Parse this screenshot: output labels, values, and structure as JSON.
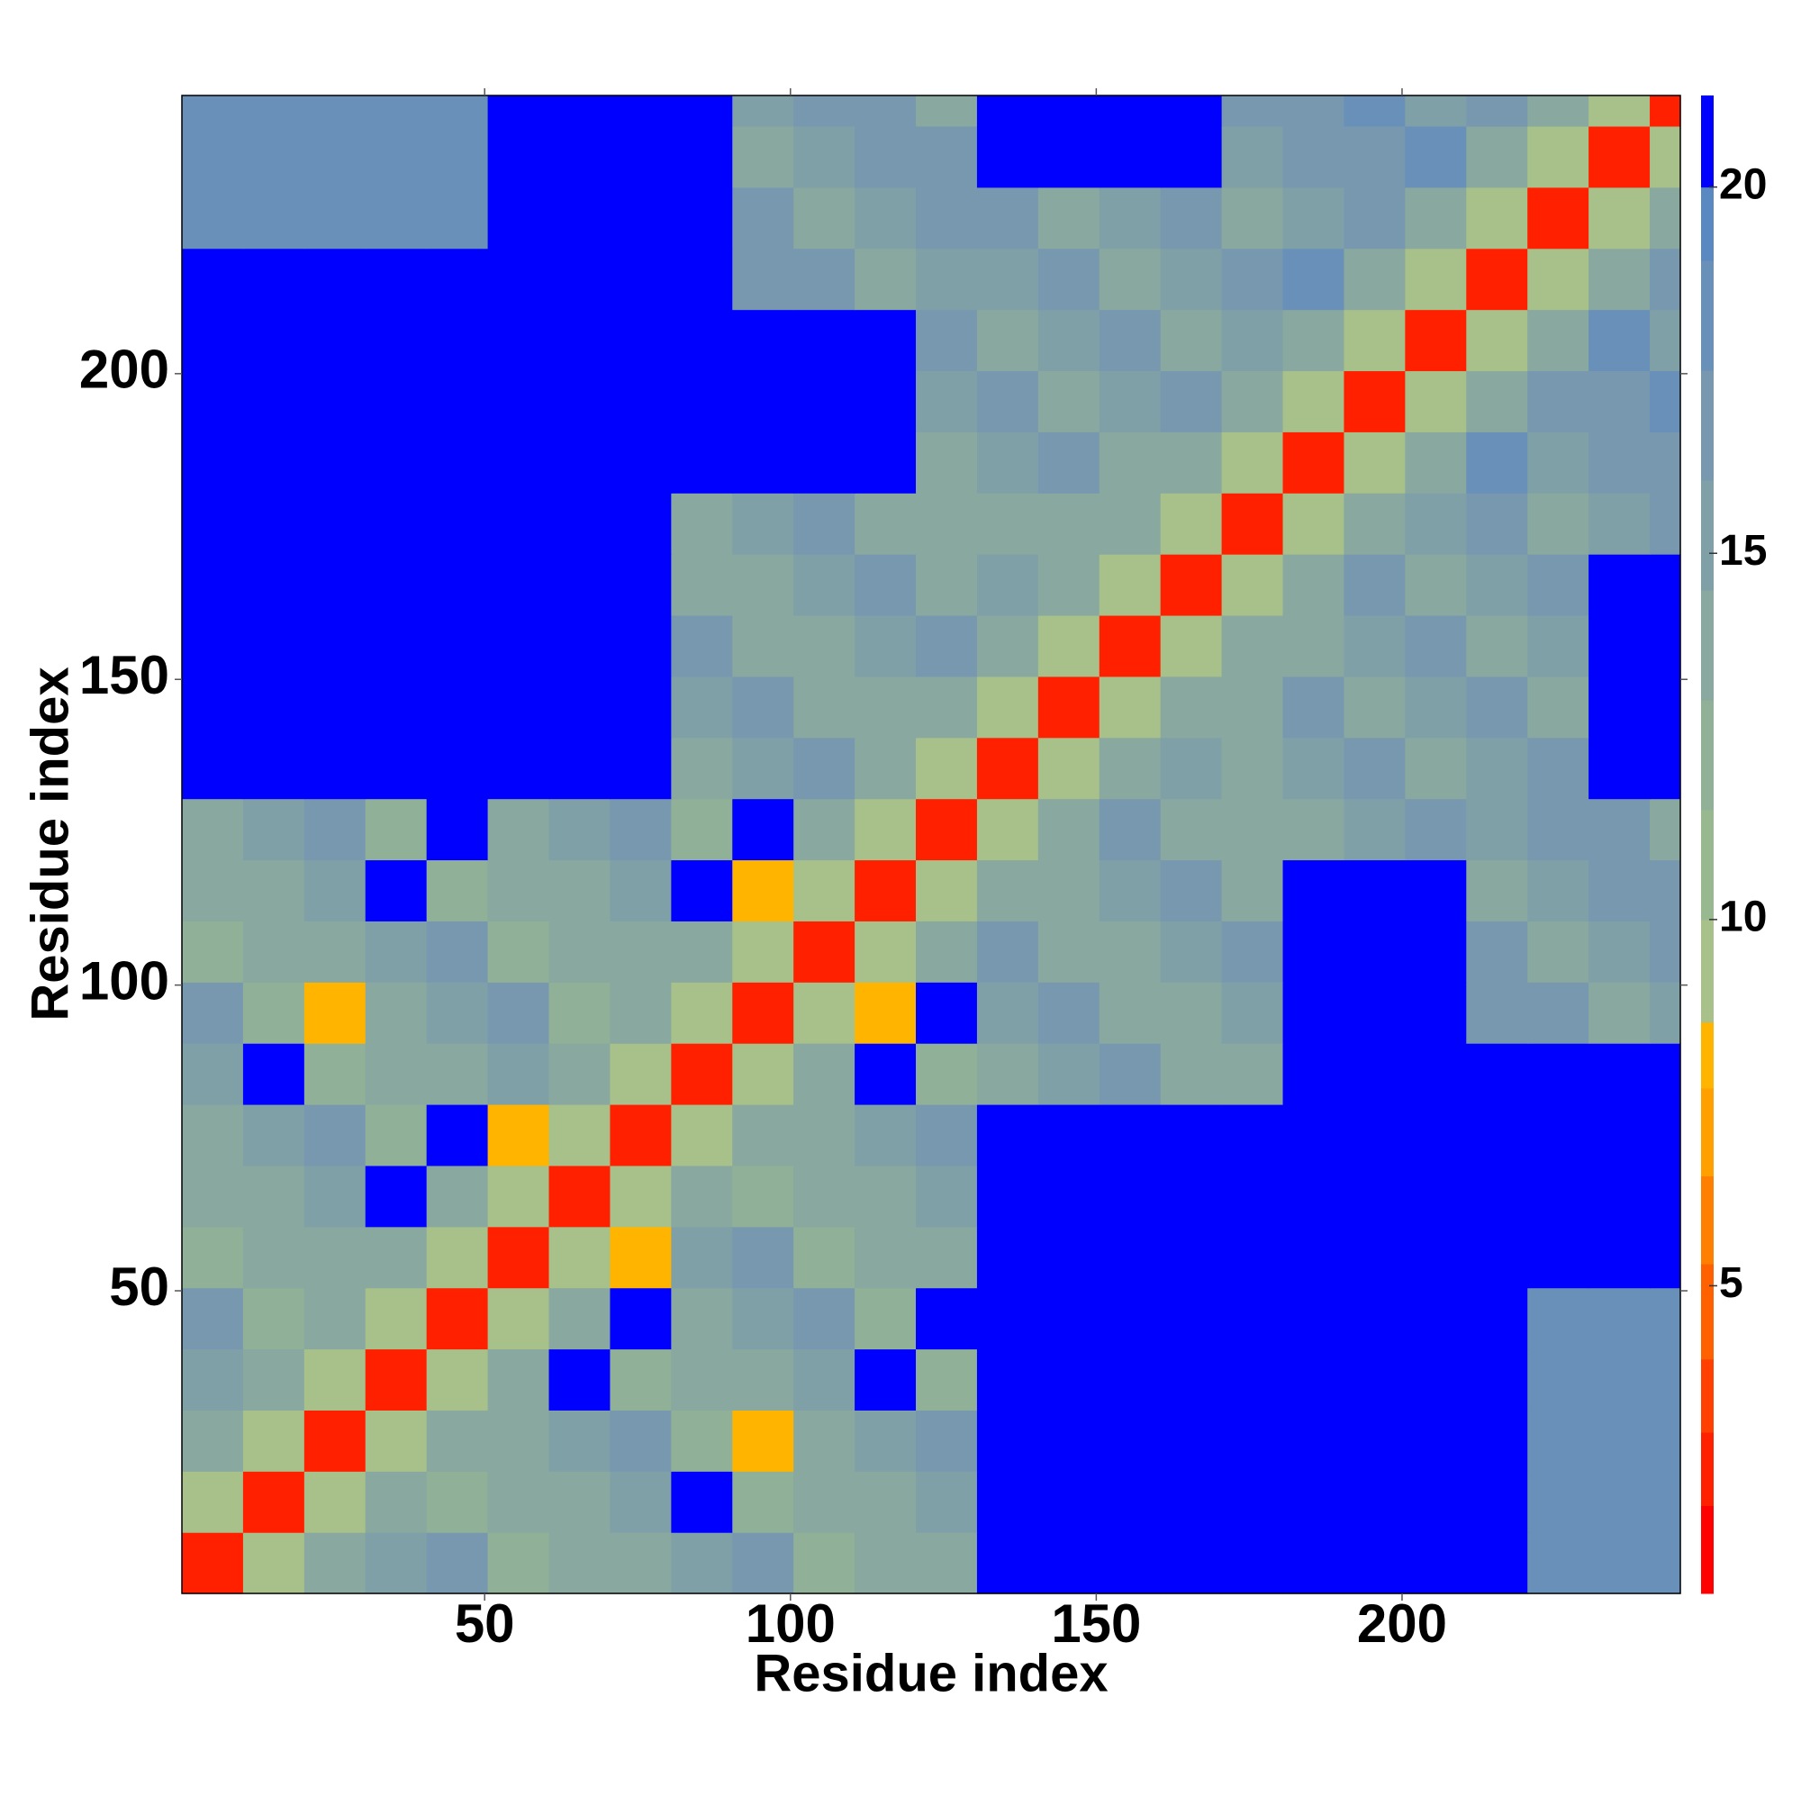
{
  "chart_data": {
    "type": "heatmap",
    "xlabel": "Residue index",
    "ylabel": "Residue index",
    "xlim": [
      0.5,
      245.5
    ],
    "ylim": [
      0.5,
      245.5
    ],
    "xticks": [
      50,
      100,
      150,
      200
    ],
    "yticks": [
      50,
      100,
      150,
      200
    ],
    "xbins": [
      0.5,
      10.5,
      20.5,
      30.5,
      40.5,
      50.5,
      60.5,
      70.5,
      80.5,
      90.5,
      100.5,
      110.5,
      120.5,
      130.5,
      140.5,
      150.5,
      160.5,
      170.5,
      180.5,
      190.5,
      200.5,
      210.5,
      220.5,
      230.5,
      240.5,
      245.5
    ],
    "ybins": [
      0.5,
      10.5,
      20.5,
      30.5,
      40.5,
      50.5,
      60.5,
      70.5,
      80.5,
      90.5,
      100.5,
      110.5,
      120.5,
      130.5,
      140.5,
      150.5,
      160.5,
      170.5,
      180.5,
      190.5,
      200.5,
      210.5,
      220.5,
      230.5,
      240.5,
      245.5
    ],
    "z": [
      [
        2,
        9,
        13,
        15,
        16,
        12,
        13,
        14,
        15,
        16,
        12,
        13,
        14,
        21,
        21,
        21,
        21,
        21,
        21,
        21,
        21,
        21,
        18,
        18,
        18
      ],
      [
        9,
        2,
        9,
        13,
        12,
        13,
        14,
        15,
        21,
        12,
        13,
        14,
        15,
        21,
        21,
        21,
        21,
        21,
        21,
        21,
        21,
        21,
        18,
        18,
        18
      ],
      [
        13,
        9,
        2,
        9,
        13,
        14,
        15,
        16,
        12,
        8,
        14,
        15,
        16,
        21,
        21,
        21,
        21,
        21,
        21,
        21,
        21,
        21,
        18,
        18,
        18
      ],
      [
        15,
        13,
        9,
        2,
        9,
        13,
        21,
        12,
        13,
        14,
        15,
        21,
        12,
        21,
        21,
        21,
        21,
        21,
        21,
        21,
        21,
        21,
        18,
        18,
        18
      ],
      [
        16,
        12,
        13,
        9,
        2,
        9,
        13,
        21,
        14,
        15,
        16,
        12,
        21,
        21,
        21,
        21,
        21,
        21,
        21,
        21,
        21,
        21,
        18,
        18,
        18
      ],
      [
        12,
        13,
        14,
        13,
        9,
        2,
        9,
        8,
        15,
        16,
        12,
        13,
        14,
        21,
        21,
        21,
        21,
        21,
        21,
        21,
        21,
        21,
        21,
        21,
        21
      ],
      [
        13,
        14,
        15,
        21,
        13,
        9,
        2,
        9,
        13,
        12,
        13,
        14,
        15,
        21,
        21,
        21,
        21,
        21,
        21,
        21,
        21,
        21,
        21,
        21,
        21
      ],
      [
        14,
        15,
        16,
        12,
        21,
        8,
        9,
        2,
        9,
        13,
        14,
        15,
        16,
        21,
        21,
        21,
        21,
        21,
        21,
        21,
        21,
        21,
        21,
        21,
        21
      ],
      [
        15,
        21,
        12,
        13,
        14,
        15,
        13,
        9,
        2,
        9,
        13,
        21,
        12,
        14,
        15,
        16,
        13,
        14,
        21,
        21,
        21,
        21,
        21,
        21,
        21
      ],
      [
        16,
        12,
        8,
        14,
        15,
        16,
        12,
        13,
        9,
        2,
        9,
        8,
        21,
        15,
        16,
        13,
        14,
        15,
        21,
        21,
        21,
        16,
        17,
        14,
        15
      ],
      [
        12,
        13,
        14,
        15,
        16,
        12,
        13,
        14,
        13,
        9,
        2,
        9,
        13,
        16,
        13,
        14,
        15,
        16,
        21,
        21,
        21,
        17,
        14,
        15,
        16
      ],
      [
        13,
        14,
        15,
        21,
        12,
        13,
        14,
        15,
        21,
        8,
        9,
        2,
        9,
        13,
        14,
        15,
        16,
        13,
        21,
        21,
        21,
        14,
        15,
        16,
        17
      ],
      [
        14,
        15,
        16,
        12,
        21,
        14,
        15,
        16,
        12,
        21,
        13,
        9,
        2,
        9,
        13,
        16,
        13,
        14,
        14,
        15,
        16,
        15,
        16,
        17,
        14
      ],
      [
        21,
        21,
        21,
        21,
        21,
        21,
        21,
        21,
        14,
        15,
        16,
        13,
        9,
        2,
        9,
        13,
        15,
        13,
        15,
        16,
        14,
        15,
        16,
        21,
        21
      ],
      [
        21,
        21,
        21,
        21,
        21,
        21,
        21,
        21,
        15,
        16,
        13,
        14,
        13,
        9,
        2,
        9,
        13,
        14,
        16,
        14,
        15,
        16,
        14,
        21,
        21
      ],
      [
        21,
        21,
        21,
        21,
        21,
        21,
        21,
        21,
        16,
        13,
        14,
        15,
        16,
        13,
        9,
        2,
        9,
        13,
        14,
        15,
        16,
        14,
        15,
        21,
        21
      ],
      [
        21,
        21,
        21,
        21,
        21,
        21,
        21,
        21,
        13,
        14,
        15,
        16,
        13,
        15,
        13,
        9,
        2,
        9,
        13,
        16,
        14,
        15,
        16,
        21,
        21
      ],
      [
        21,
        21,
        21,
        21,
        21,
        21,
        21,
        21,
        14,
        15,
        16,
        13,
        14,
        13,
        14,
        13,
        9,
        2,
        9,
        13,
        15,
        16,
        14,
        15,
        16
      ],
      [
        21,
        21,
        21,
        21,
        21,
        21,
        21,
        21,
        21,
        21,
        21,
        21,
        14,
        15,
        16,
        14,
        13,
        9,
        2,
        9,
        13,
        18,
        15,
        16,
        17
      ],
      [
        21,
        21,
        21,
        21,
        21,
        21,
        21,
        21,
        21,
        21,
        21,
        21,
        15,
        16,
        14,
        15,
        16,
        13,
        9,
        2,
        9,
        13,
        16,
        17,
        18
      ],
      [
        21,
        21,
        21,
        21,
        21,
        21,
        21,
        21,
        21,
        21,
        21,
        21,
        16,
        14,
        15,
        16,
        14,
        15,
        13,
        9,
        2,
        9,
        13,
        18,
        15
      ],
      [
        21,
        21,
        21,
        21,
        21,
        21,
        21,
        21,
        21,
        16,
        17,
        14,
        15,
        15,
        16,
        14,
        15,
        16,
        18,
        13,
        9,
        2,
        9,
        13,
        16
      ],
      [
        18,
        18,
        18,
        18,
        18,
        21,
        21,
        21,
        21,
        17,
        14,
        15,
        16,
        16,
        14,
        15,
        16,
        14,
        15,
        16,
        13,
        9,
        2,
        9,
        13
      ],
      [
        18,
        18,
        18,
        18,
        18,
        21,
        21,
        21,
        21,
        14,
        15,
        16,
        17,
        21,
        21,
        21,
        21,
        15,
        16,
        17,
        18,
        13,
        9,
        2,
        9
      ],
      [
        18,
        18,
        18,
        18,
        18,
        21,
        21,
        21,
        21,
        15,
        16,
        17,
        14,
        21,
        21,
        21,
        21,
        16,
        17,
        18,
        15,
        16,
        13,
        9,
        2
      ]
    ],
    "clim": [
      0.8,
      21.25
    ],
    "cticks": [
      5,
      10,
      15,
      20
    ],
    "color_levels": [
      2,
      3,
      4,
      5.3,
      6.5,
      7.7,
      8.6,
      10,
      11.5,
      13,
      14.5,
      16,
      17.5,
      19,
      20
    ],
    "colors": [
      "#ff0000",
      "#ff2000",
      "#ff4000",
      "#ff6000",
      "#ff8000",
      "#ffa000",
      "#ffb400",
      "#a8c08a",
      "#98b890",
      "#90b098",
      "#88a8a0",
      "#80a0a8",
      "#7898b0",
      "#6890b8",
      "#5a88c0",
      "#0000ff"
    ]
  }
}
